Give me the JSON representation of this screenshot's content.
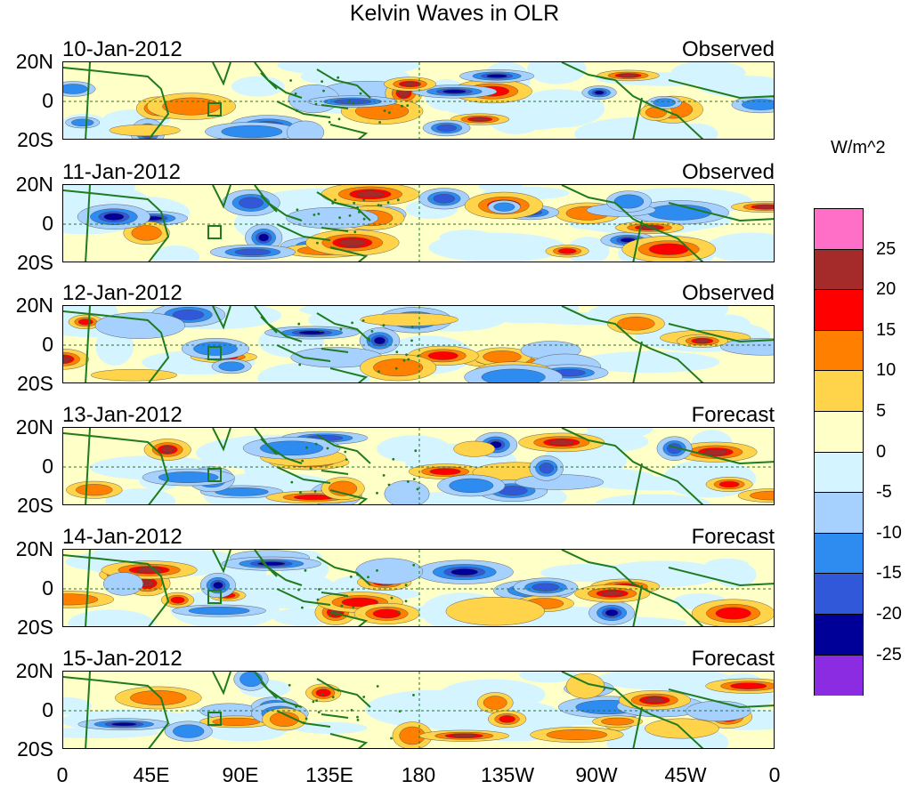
{
  "title": "Kelvin Waves in OLR",
  "unit_label": "W/m^2",
  "lat_labels": [
    "20N",
    "0",
    "20S"
  ],
  "lon_labels": [
    "0",
    "45E",
    "90E",
    "135E",
    "180",
    "135W",
    "90W",
    "45W",
    "0"
  ],
  "panels": [
    {
      "date": "10-Jan-2012",
      "kind": "Observed"
    },
    {
      "date": "11-Jan-2012",
      "kind": "Observed"
    },
    {
      "date": "12-Jan-2012",
      "kind": "Observed"
    },
    {
      "date": "13-Jan-2012",
      "kind": "Forecast"
    },
    {
      "date": "14-Jan-2012",
      "kind": "Forecast"
    },
    {
      "date": "15-Jan-2012",
      "kind": "Forecast"
    }
  ],
  "colorbar": {
    "ticks": [
      "25",
      "20",
      "15",
      "10",
      "5",
      "0",
      "-5",
      "-10",
      "-15",
      "-20",
      "-25"
    ],
    "colors": [
      "#ff6ec7",
      "#a52a2a",
      "#ff0000",
      "#ff7f00",
      "#ffd34a",
      "#ffffc8",
      "#d4f4ff",
      "#a6d1ff",
      "#2e8bf0",
      "#3158d9",
      "#000099",
      "#8b2be2"
    ]
  },
  "colors": {
    "land": "#1e7b1e",
    "grid": "#1e7b1e"
  }
}
